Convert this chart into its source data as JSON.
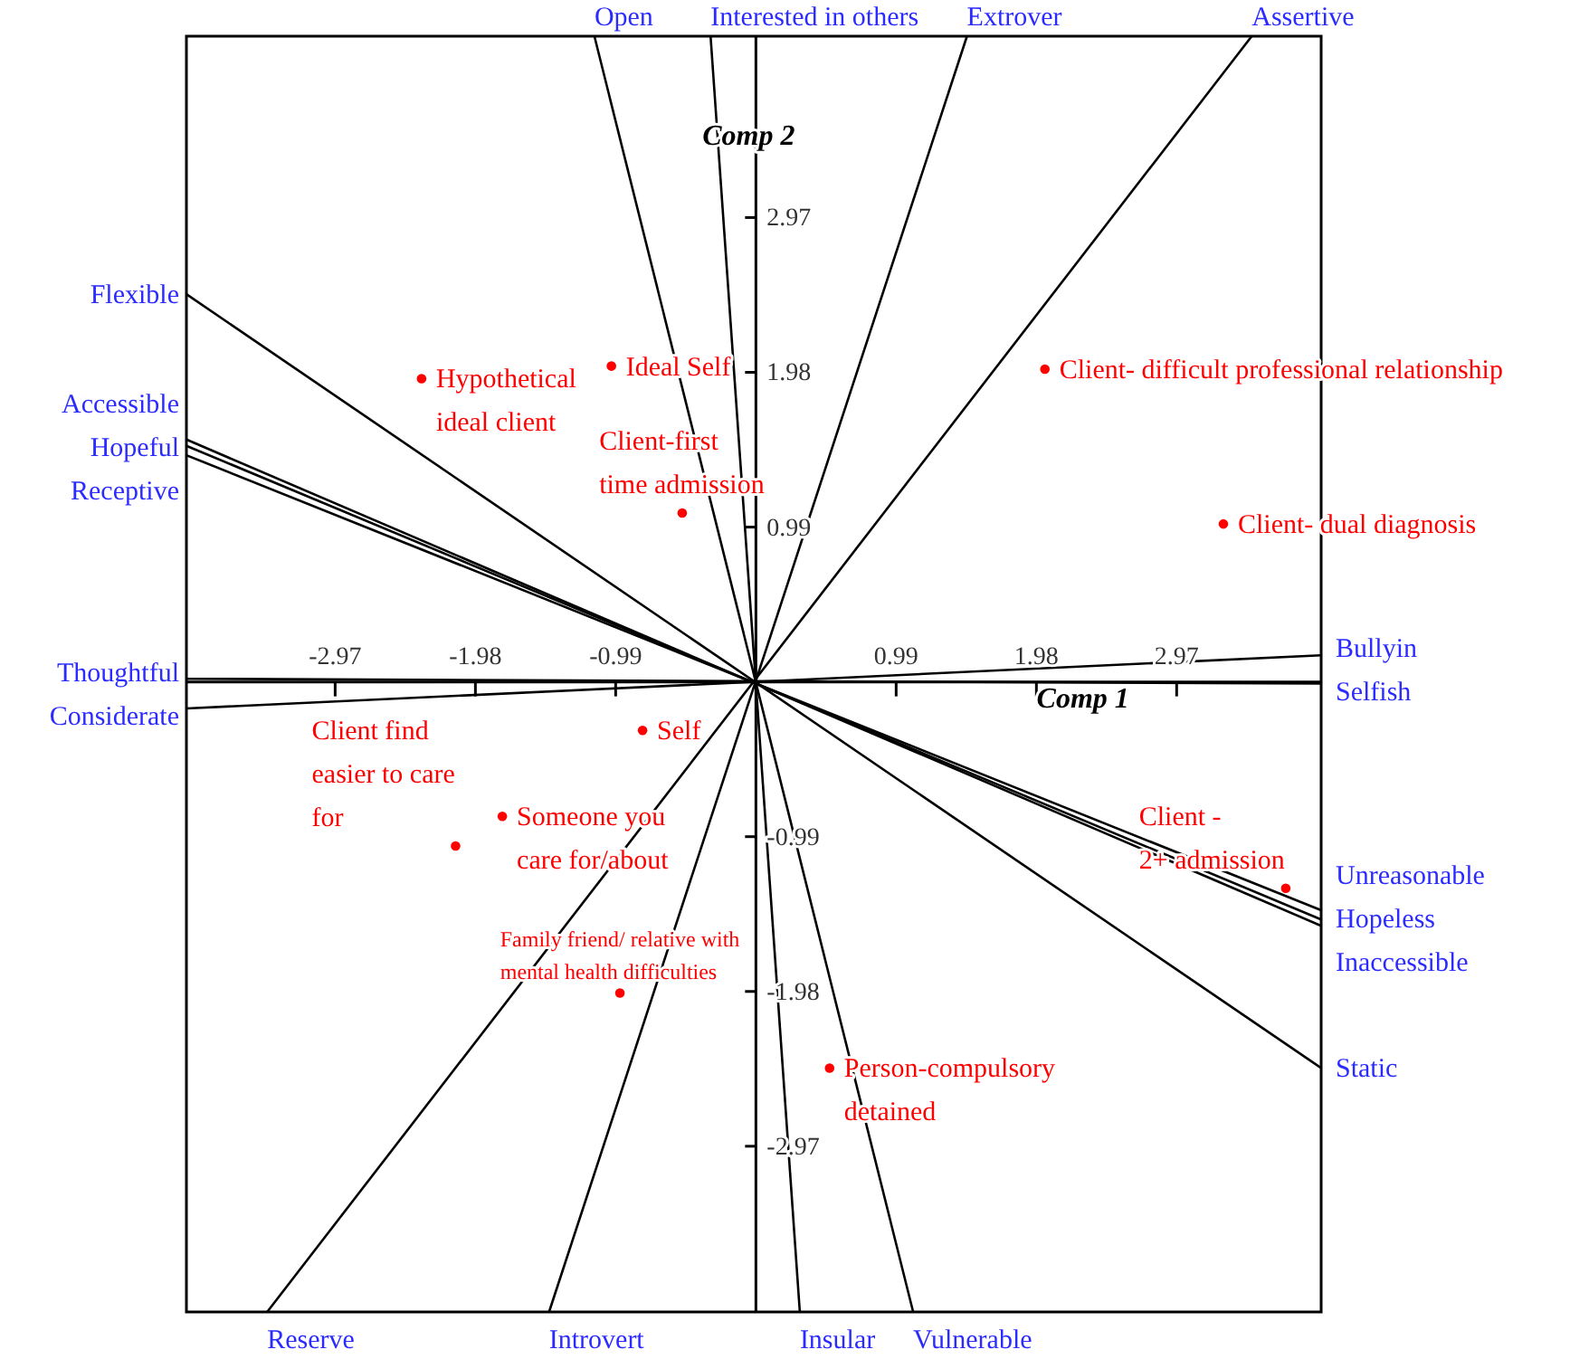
{
  "chart_data": {
    "type": "scatter",
    "xlabel": "Comp 1",
    "ylabel": "Comp 2",
    "xlim": [
      -4.02,
      3.99
    ],
    "ylim": [
      -4.03,
      4.13
    ],
    "xticks": [
      -2.97,
      -1.98,
      -0.99,
      0.99,
      1.98,
      2.97
    ],
    "yticks": [
      -2.97,
      -1.98,
      -0.99,
      0.99,
      1.98,
      2.97
    ],
    "grid": false,
    "series": [
      {
        "type": "line",
        "color": "#000000",
        "x": [
          -1.14,
          1.11
        ],
        "values": [
          4.13,
          -4.03
        ]
      },
      {
        "type": "line",
        "color": "#000000",
        "x": [
          -0.32,
          0.31
        ],
        "values": [
          4.13,
          -4.03
        ]
      },
      {
        "type": "line",
        "color": "#000000",
        "x": [
          1.49,
          -1.46
        ],
        "values": [
          4.13,
          -4.03
        ]
      },
      {
        "type": "line",
        "color": "#000000",
        "x": [
          3.5,
          -3.45
        ],
        "values": [
          4.13,
          -4.03
        ]
      },
      {
        "type": "line",
        "color": "#000000",
        "x": [
          -4.02,
          3.99
        ],
        "values": [
          2.48,
          -2.47
        ]
      },
      {
        "type": "line",
        "color": "#000000",
        "x": [
          -4.02,
          3.99
        ],
        "values": [
          1.55,
          -1.56
        ]
      },
      {
        "type": "line",
        "color": "#000000",
        "x": [
          -4.02,
          3.99
        ],
        "values": [
          1.51,
          -1.52
        ]
      },
      {
        "type": "line",
        "color": "#000000",
        "x": [
          -4.02,
          3.99
        ],
        "values": [
          1.45,
          -1.46
        ]
      },
      {
        "type": "line",
        "color": "#000000",
        "x": [
          -4.02,
          3.99
        ],
        "values": [
          0.02,
          -0.01
        ]
      },
      {
        "type": "line",
        "color": "#000000",
        "x": [
          -4.02,
          3.99
        ],
        "values": [
          -0.17,
          0.17
        ]
      },
      {
        "color": "#ff0000",
        "marker": "circle",
        "x": [
          -2.36,
          -1.02,
          -0.52,
          2.04,
          3.3,
          -0.8,
          -1.79,
          -2.12,
          -0.96,
          0.52,
          3.74
        ],
        "values": [
          1.94,
          2.02,
          1.08,
          2.0,
          1.01,
          -0.31,
          -0.86,
          -1.05,
          -1.99,
          -2.47,
          -1.32
        ]
      }
    ],
    "annotations": [
      {
        "text": "Open",
        "x": -1.14,
        "y": 4.13
      },
      {
        "text": "Interested in others",
        "x": -0.32,
        "y": 4.13
      },
      {
        "text": "Extrover",
        "x": 1.49,
        "y": 4.13
      },
      {
        "text": "Assertive",
        "x": 3.5,
        "y": 4.13
      },
      {
        "text": "Reserve",
        "x": -3.45,
        "y": -4.03
      },
      {
        "text": "Introvert",
        "x": -1.46,
        "y": -4.03
      },
      {
        "text": "Insular",
        "x": 0.31,
        "y": -4.03
      },
      {
        "text": "Vulnerable",
        "x": 1.11,
        "y": -4.03
      },
      {
        "text": "Flexible",
        "x": -4.02,
        "y": 2.48
      },
      {
        "text": "Accessible",
        "x": -4.02,
        "y": 1.55
      },
      {
        "text": "Hopeful",
        "x": -4.02,
        "y": 1.51
      },
      {
        "text": "Receptive",
        "x": -4.02,
        "y": 1.45
      },
      {
        "text": "Thoughtful",
        "x": -4.02,
        "y": 0.02
      },
      {
        "text": "Considerate",
        "x": -4.02,
        "y": -0.17
      },
      {
        "text": "Bullyin",
        "x": 3.99,
        "y": 0.17
      },
      {
        "text": "Selfish",
        "x": 3.99,
        "y": -0.01
      },
      {
        "text": "Unreasonable",
        "x": 3.99,
        "y": -1.46
      },
      {
        "text": "Hopeless",
        "x": 3.99,
        "y": -1.52
      },
      {
        "text": "Inaccessible",
        "x": 3.99,
        "y": -1.56
      },
      {
        "text": "Static",
        "x": 3.99,
        "y": -2.47
      },
      {
        "text": "Hypothetical\nideal client",
        "x": -2.36,
        "y": 1.94
      },
      {
        "text": "Ideal Self",
        "x": -1.02,
        "y": 2.02
      },
      {
        "text": "Client-first\ntime admission",
        "x": -0.52,
        "y": 1.08
      },
      {
        "text": "Client- difficult professional relationship",
        "x": 2.04,
        "y": 2.0
      },
      {
        "text": "Client- dual diagnosis",
        "x": 3.3,
        "y": 1.01
      },
      {
        "text": "Self",
        "x": -0.8,
        "y": -0.31
      },
      {
        "text": "Someone you\ncare for/about",
        "x": -1.79,
        "y": -0.86
      },
      {
        "text": "Client find\neasier to care\nfor",
        "x": -2.12,
        "y": -1.05
      },
      {
        "text": "Family friend/ relative with\nmental health difficulties",
        "x": -0.96,
        "y": -1.99
      },
      {
        "text": "Person-compulsory\ndetained",
        "x": 0.52,
        "y": -2.47
      },
      {
        "text": "Client -\n2+ admission",
        "x": 3.74,
        "y": -1.32
      }
    ]
  }
}
